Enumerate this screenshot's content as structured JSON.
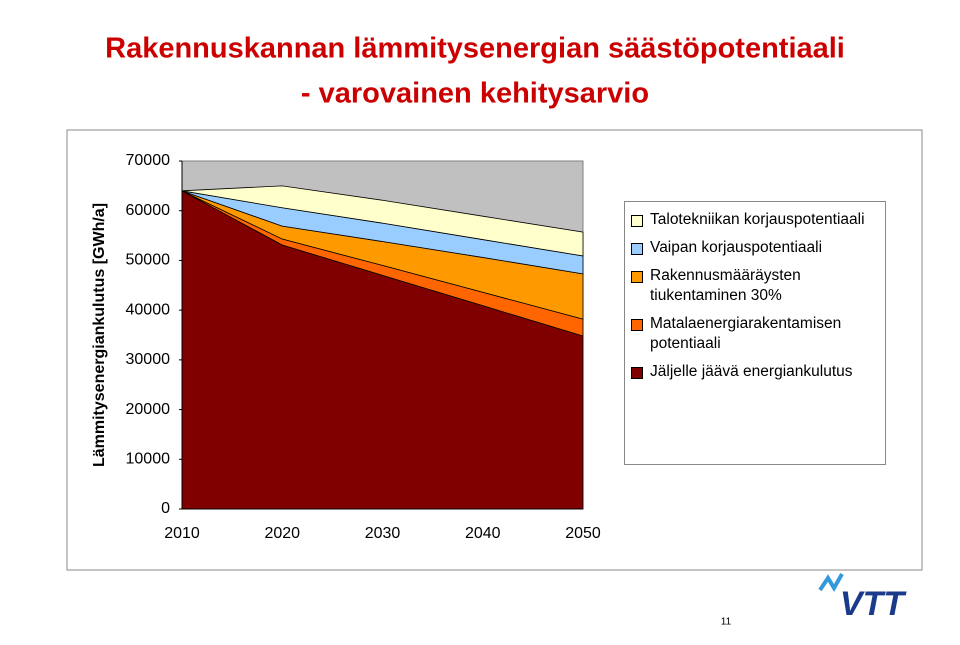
{
  "chart_data": {
    "type": "stacked_area",
    "title": "Rakennuskannan lämmitysenergian säästöpotentiaali",
    "subtitle": "- varovainen kehitysarvio",
    "y_label": "Lämmitysenergiankulutus [GWh/a]",
    "x": [
      2010,
      2020,
      2030,
      2040,
      2050
    ],
    "xlim": [
      2010,
      2050
    ],
    "xticks": [
      2010,
      2020,
      2030,
      2040,
      2050
    ],
    "ylim": [
      0,
      70000
    ],
    "yticks": [
      0,
      10000,
      20000,
      30000,
      40000,
      50000,
      60000,
      70000
    ],
    "series": [
      {
        "name": "Jäljelle jäävä energiankulutus",
        "color": "#800000",
        "values": [
          64000,
          53100,
          47000,
          40900,
          34800
        ]
      },
      {
        "name": "Matalaenergiarakentamisen potentiaali",
        "color": "#ff6600",
        "values": [
          0,
          1200,
          2000,
          2700,
          3400
        ]
      },
      {
        "name": "Rakennusmääräysten tiukentaminen 30%",
        "color": "#ff9900",
        "values": [
          0,
          2600,
          4800,
          7000,
          9100
        ]
      },
      {
        "name": "Vaipan korjauspotentiaali",
        "color": "#99ccff",
        "values": [
          0,
          3700,
          3700,
          3600,
          3600
        ]
      },
      {
        "name": "Talotekniikan korjauspotentiaali",
        "color": "#ffffcc",
        "values": [
          0,
          4400,
          4600,
          4700,
          4800
        ]
      }
    ]
  },
  "footer": {
    "page": "11",
    "logo": "VTT"
  }
}
